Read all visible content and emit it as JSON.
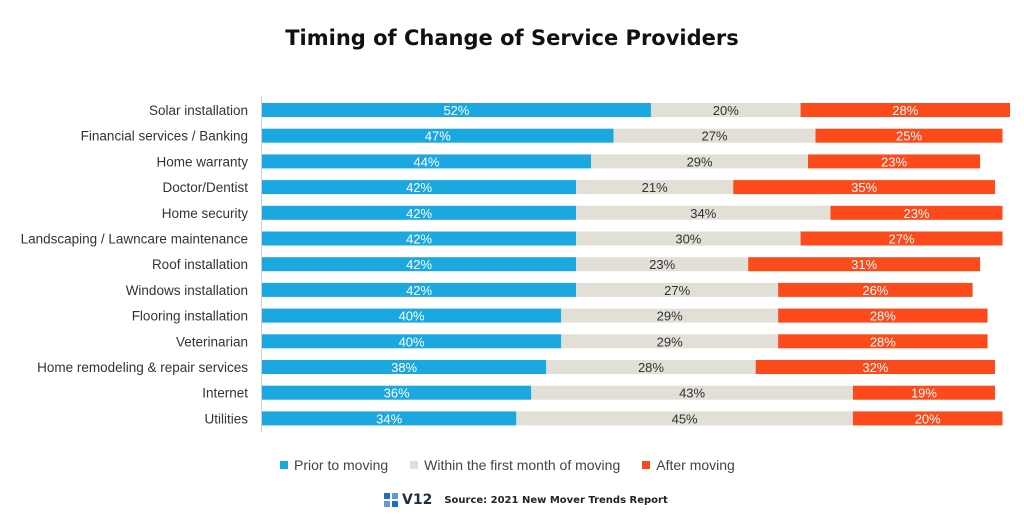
{
  "chart_data": {
    "type": "bar",
    "orientation": "horizontal",
    "stacked": true,
    "title": "Timing of Change of Service Providers",
    "categories": [
      "Solar installation",
      "Financial services / Banking",
      "Home warranty",
      "Doctor/Dentist",
      "Home security",
      "Landscaping / Lawncare maintenance",
      "Roof installation",
      "Windows installation",
      "Flooring installation",
      "Veterinarian",
      "Home remodeling & repair services",
      "Internet",
      "Utilities"
    ],
    "series": [
      {
        "name": "Prior to moving",
        "color": "#1ba8e0",
        "label_color": "#ffffff",
        "values": [
          52,
          47,
          44,
          42,
          42,
          42,
          42,
          42,
          40,
          40,
          38,
          36,
          34
        ],
        "labels": [
          "52%",
          "47%",
          "44%",
          "42%",
          "42%",
          "42%",
          "42%",
          "42%",
          "40%",
          "40%",
          "38%",
          "36%",
          "34%"
        ]
      },
      {
        "name": "Within the first month of moving",
        "color": "#e2dfd6",
        "label_color": "#333333",
        "values": [
          20,
          27,
          29,
          21,
          34,
          30,
          23,
          27,
          29,
          29,
          28,
          43,
          45
        ],
        "labels": [
          "20%",
          "27%",
          "29%",
          "21%",
          "34%",
          "30%",
          "23%",
          "27%",
          "29%",
          "29%",
          "28%",
          "43%",
          "45%"
        ]
      },
      {
        "name": "After moving",
        "color": "#fc4a1a",
        "label_color": "#ffffff",
        "values": [
          28,
          25,
          23,
          35,
          23,
          27,
          31,
          26,
          28,
          28,
          32,
          19,
          20
        ],
        "labels": [
          "28%",
          "25%",
          "23%",
          "35%",
          "23%",
          "27%",
          "31%",
          "26%",
          "28%",
          "28%",
          "32%",
          "19%",
          "20%"
        ]
      }
    ],
    "xlim": [
      0,
      100
    ],
    "grid": false,
    "legend_position": "bottom"
  },
  "footer": {
    "logo_text": "V12",
    "source": "Source: 2021 New Mover Trends Report"
  }
}
